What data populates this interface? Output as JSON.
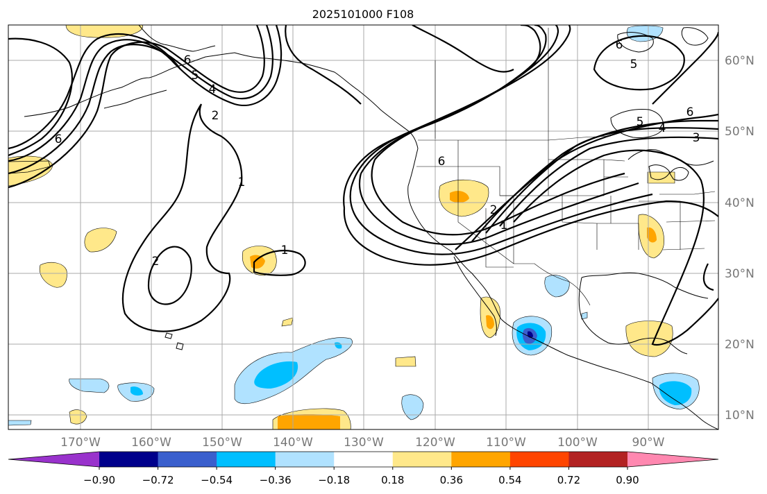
{
  "title": "2025101000 F108",
  "lat_labels": [
    "60°N",
    "50°N",
    "40°N",
    "30°N",
    "20°N",
    "10°N"
  ],
  "lon_labels": [
    "170°W",
    "160°W",
    "150°W",
    "140°W",
    "130°W",
    "120°W",
    "110°W",
    "100°W",
    "90°W"
  ],
  "colorbar": {
    "tick_labels": [
      "−0.90",
      "−0.72",
      "−0.54",
      "−0.36",
      "−0.18",
      "0.18",
      "0.36",
      "0.54",
      "0.72",
      "0.90"
    ],
    "colors": [
      "#9932cc",
      "#00008b",
      "#3a5fcd",
      "#00bfff",
      "#b0e2ff",
      "#ffffff",
      "#ffe88a",
      "#ffa500",
      "#ff4500",
      "#b22222",
      "#ff88b0"
    ]
  },
  "contour_labels": [
    "6",
    "5",
    "4",
    "2",
    "6",
    "1",
    "2",
    "1",
    "6",
    "2",
    "1",
    "6",
    "5",
    "4",
    "3",
    "6",
    "5"
  ],
  "colors": {
    "line": "#000000",
    "grid": "#aaaaaa",
    "label": "#777777"
  }
}
